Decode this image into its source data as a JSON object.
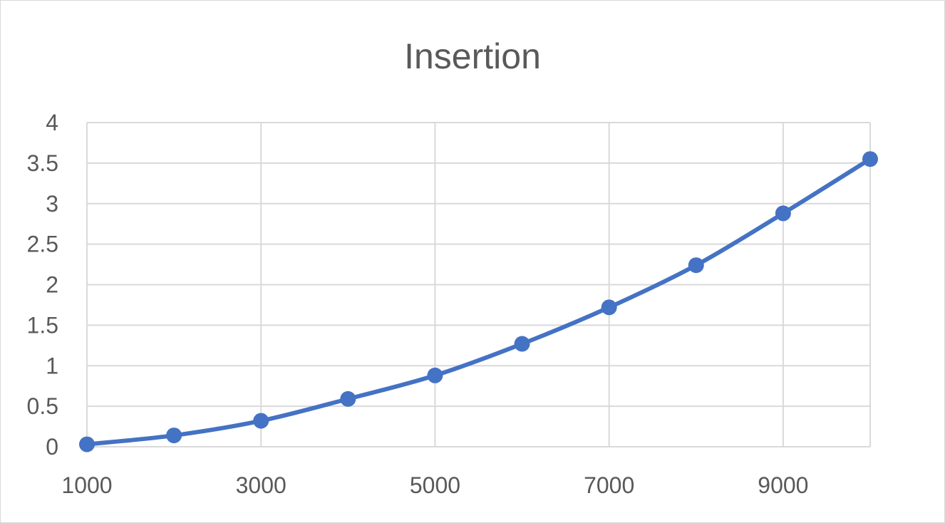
{
  "chart_data": {
    "type": "line",
    "title": "Insertion",
    "xlabel": "",
    "ylabel": "",
    "x": [
      1000,
      2000,
      3000,
      4000,
      5000,
      6000,
      7000,
      8000,
      9000,
      10000
    ],
    "series": [
      {
        "values": [
          0.03,
          0.14,
          0.32,
          0.59,
          0.88,
          1.27,
          1.72,
          2.24,
          2.88,
          3.55
        ],
        "color": "#4472c4",
        "markers": true,
        "smooth": true
      }
    ],
    "xlim": [
      1000,
      10000
    ],
    "ylim": [
      0,
      4
    ],
    "x_ticks": [
      1000,
      3000,
      5000,
      7000,
      9000
    ],
    "x_tick_labels": [
      "1000",
      "3000",
      "5000",
      "7000",
      "9000"
    ],
    "y_ticks": [
      0,
      0.5,
      1,
      1.5,
      2,
      2.5,
      3,
      3.5,
      4
    ],
    "y_tick_labels": [
      "0",
      "0.5",
      "1",
      "1.5",
      "2",
      "2.5",
      "3",
      "3.5",
      "4"
    ],
    "grid": true,
    "legend": "none"
  }
}
